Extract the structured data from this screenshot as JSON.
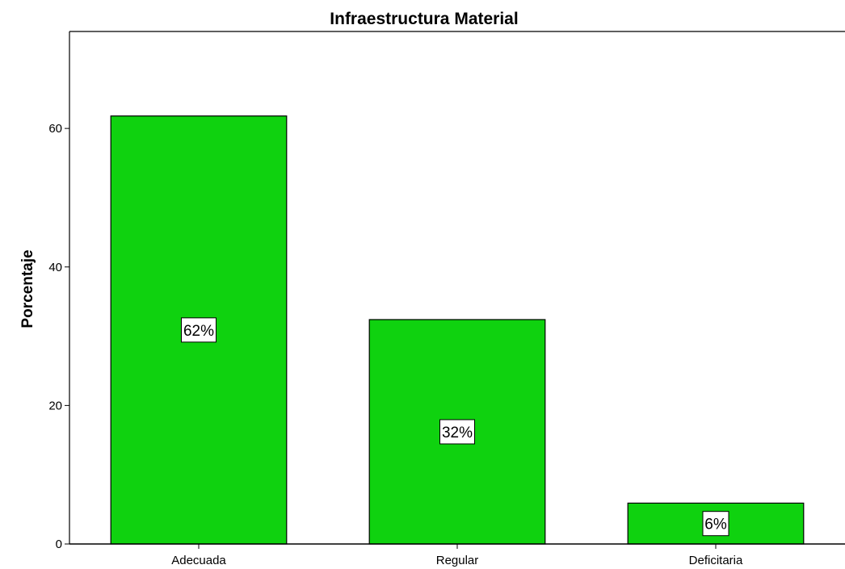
{
  "chart_data": {
    "type": "bar",
    "title": "Infraestructura Material",
    "xlabel": "",
    "ylabel": "Porcentaje",
    "categories": [
      "Adecuada",
      "Regular",
      "Deficitaria"
    ],
    "values": [
      61.8,
      32.4,
      5.9
    ],
    "data_labels": [
      "62%",
      "32%",
      "6%"
    ],
    "yticks": [
      0,
      20,
      40,
      60
    ],
    "ylim": [
      0,
      74
    ],
    "grid": false,
    "legend": "none",
    "bar_color": "#0fd20f",
    "bar_edge_color": "#000000"
  }
}
